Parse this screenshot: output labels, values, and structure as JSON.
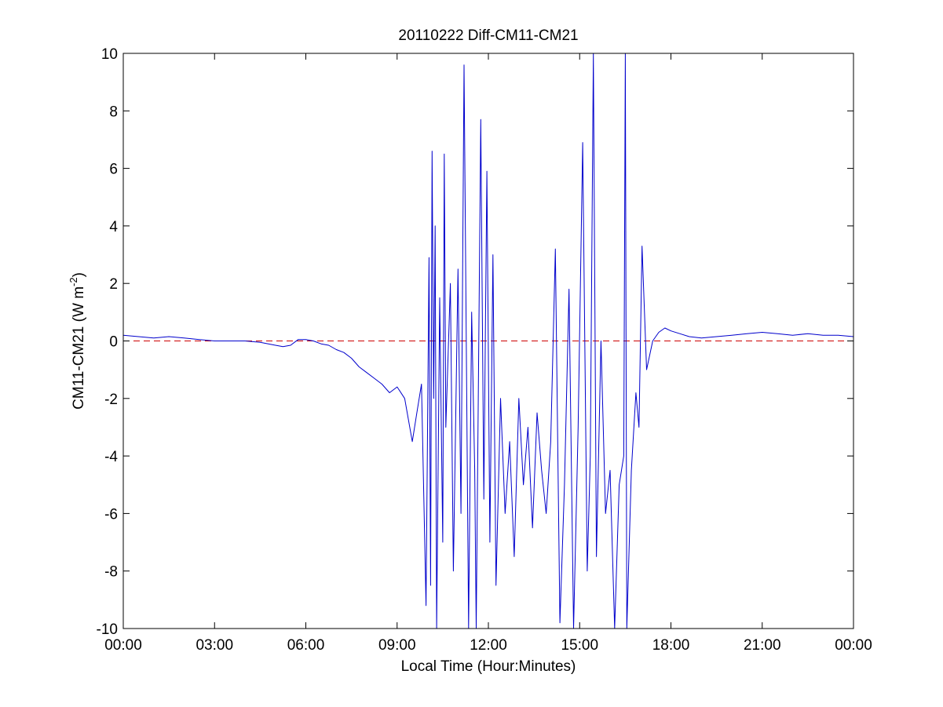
{
  "chart_data": {
    "type": "line",
    "title": "20110222 Diff-CM11-CM21",
    "xlabel": "Local Time (Hour:Minutes)",
    "ylabel_main": "CM11-CM21 (W m",
    "ylabel_sup": "-2",
    "ylabel_close": ")",
    "x_unit": "hours",
    "xlim": [
      0,
      24
    ],
    "ylim": [
      -10,
      10
    ],
    "grid": false,
    "x_ticks": [
      0,
      3,
      6,
      9,
      12,
      15,
      18,
      21,
      24
    ],
    "x_tick_labels": [
      "00:00",
      "03:00",
      "06:00",
      "09:00",
      "12:00",
      "15:00",
      "18:00",
      "21:00",
      "00:00"
    ],
    "y_ticks": [
      -10,
      -8,
      -6,
      -4,
      -2,
      0,
      2,
      4,
      6,
      8,
      10
    ],
    "y_tick_labels": [
      "-10",
      "-8",
      "-6",
      "-4",
      "-2",
      "0",
      "2",
      "4",
      "6",
      "8",
      "10"
    ],
    "reference_line": {
      "y": 0,
      "style": "dashed",
      "color": "#cc0000"
    },
    "series": [
      {
        "color": "#0000cc",
        "x": [
          0.0,
          0.5,
          1.0,
          1.5,
          2.0,
          2.5,
          3.0,
          3.5,
          4.0,
          4.5,
          5.0,
          5.25,
          5.5,
          5.75,
          6.0,
          6.25,
          6.5,
          6.75,
          7.0,
          7.25,
          7.5,
          7.75,
          8.0,
          8.25,
          8.5,
          8.75,
          9.0,
          9.25,
          9.5,
          9.65,
          9.8,
          9.95,
          10.05,
          10.1,
          10.15,
          10.2,
          10.25,
          10.3,
          10.4,
          10.5,
          10.55,
          10.6,
          10.75,
          10.85,
          11.0,
          11.1,
          11.2,
          11.35,
          11.45,
          11.55,
          11.6,
          11.75,
          11.85,
          11.95,
          12.05,
          12.15,
          12.25,
          12.4,
          12.55,
          12.7,
          12.85,
          13.0,
          13.15,
          13.3,
          13.45,
          13.6,
          13.75,
          13.9,
          14.05,
          14.2,
          14.35,
          14.5,
          14.65,
          14.8,
          14.95,
          15.1,
          15.25,
          15.35,
          15.45,
          15.55,
          15.7,
          15.85,
          16.0,
          16.15,
          16.3,
          16.45,
          16.5,
          16.55,
          16.7,
          16.85,
          16.95,
          17.05,
          17.2,
          17.4,
          17.6,
          17.8,
          18.0,
          18.3,
          18.6,
          19.0,
          19.5,
          20.0,
          20.5,
          21.0,
          21.5,
          22.0,
          22.5,
          23.0,
          23.5,
          24.0
        ],
        "y": [
          0.2,
          0.15,
          0.1,
          0.15,
          0.1,
          0.05,
          0.0,
          0.0,
          0.0,
          -0.05,
          -0.15,
          -0.2,
          -0.15,
          0.05,
          0.05,
          0.0,
          -0.1,
          -0.15,
          -0.3,
          -0.4,
          -0.6,
          -0.9,
          -1.1,
          -1.3,
          -1.5,
          -1.8,
          -1.6,
          -2.0,
          -3.5,
          -2.5,
          -1.5,
          -9.2,
          2.9,
          -8.5,
          6.6,
          -2.0,
          4.0,
          -10.0,
          1.5,
          -7.0,
          6.5,
          -3.0,
          2.0,
          -8.0,
          2.5,
          -6.0,
          9.6,
          -10.0,
          1.0,
          -4.5,
          -10.0,
          7.7,
          -5.5,
          5.9,
          -7.0,
          3.0,
          -8.5,
          -2.0,
          -6.0,
          -3.5,
          -7.5,
          -2.0,
          -5.0,
          -3.0,
          -6.5,
          -2.5,
          -4.5,
          -6.0,
          -3.5,
          3.2,
          -9.8,
          -5.0,
          1.8,
          -10.0,
          -3.0,
          6.9,
          -8.0,
          -4.0,
          10.0,
          -7.5,
          0.0,
          -6.0,
          -4.5,
          -10.0,
          -5.0,
          -4.0,
          10.0,
          -10.0,
          -4.5,
          -1.8,
          -3.0,
          3.3,
          -1.0,
          0.0,
          0.3,
          0.45,
          0.35,
          0.25,
          0.15,
          0.1,
          0.15,
          0.2,
          0.25,
          0.3,
          0.25,
          0.2,
          0.25,
          0.2,
          0.2,
          0.15
        ]
      }
    ]
  }
}
